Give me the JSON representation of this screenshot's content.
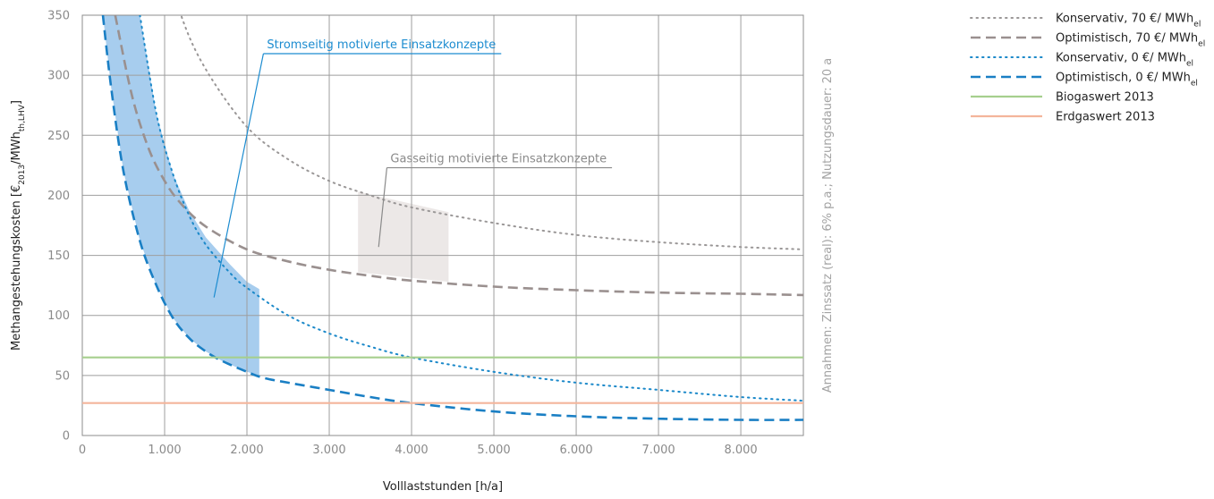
{
  "chart_data": {
    "type": "line",
    "xlabel": "Volllaststunden [h/a]",
    "ylabel_parts": [
      "Methangestehungskosten [€",
      "2013",
      "/MWh",
      "th,LHV",
      "]"
    ],
    "x_ticks": [
      0,
      1000,
      2000,
      3000,
      4000,
      5000,
      6000,
      7000,
      8000
    ],
    "x_tick_labels": [
      "0",
      "1.000",
      "2.000",
      "3.000",
      "4.000",
      "5.000",
      "6.000",
      "7.000",
      "8.000"
    ],
    "y_ticks": [
      0,
      50,
      100,
      150,
      200,
      250,
      300,
      350
    ],
    "y_tick_labels": [
      "0",
      "50",
      "100",
      "150",
      "200",
      "250",
      "300",
      "350"
    ],
    "xlim": [
      0,
      8760
    ],
    "ylim": [
      0,
      350
    ],
    "grid": true,
    "side_note": "Annahmen: Zinssatz (real): 6% p.a.; Nutzungsdauer: 20 a",
    "series": [
      {
        "name": "Konservativ, 70 €/ MWh",
        "name_sub": "el",
        "color": "#9a9797",
        "dash": "dotted",
        "points": [
          [
            1000,
            405
          ],
          [
            1200,
            350
          ],
          [
            1500,
            305
          ],
          [
            2000,
            257
          ],
          [
            2500,
            230
          ],
          [
            3000,
            212
          ],
          [
            3500,
            200
          ],
          [
            4000,
            190
          ],
          [
            5000,
            177
          ],
          [
            6000,
            167
          ],
          [
            7000,
            161
          ],
          [
            8000,
            157
          ],
          [
            8760,
            155
          ]
        ]
      },
      {
        "name": "Optimistisch, 70 €/ MWh",
        "name_sub": "el",
        "color": "#9a908f",
        "dash": "dashed",
        "points": [
          [
            400,
            350
          ],
          [
            600,
            284
          ],
          [
            800,
            240
          ],
          [
            1000,
            212
          ],
          [
            1200,
            193
          ],
          [
            1500,
            174
          ],
          [
            2000,
            155
          ],
          [
            2500,
            145
          ],
          [
            3000,
            138
          ],
          [
            3500,
            133
          ],
          [
            4000,
            129
          ],
          [
            5000,
            124
          ],
          [
            6000,
            121
          ],
          [
            7000,
            119
          ],
          [
            8000,
            118
          ],
          [
            8760,
            117
          ]
        ]
      },
      {
        "name": "Konservativ, 0 €/ MWh",
        "name_sub": "el",
        "color": "#1a88c9",
        "dash": "dotted",
        "points": [
          [
            700,
            350
          ],
          [
            900,
            268
          ],
          [
            1100,
            218
          ],
          [
            1300,
            183
          ],
          [
            1500,
            159
          ],
          [
            1800,
            135
          ],
          [
            2000,
            123
          ],
          [
            2500,
            100
          ],
          [
            3000,
            85
          ],
          [
            3500,
            74
          ],
          [
            4000,
            65
          ],
          [
            5000,
            53
          ],
          [
            6000,
            44
          ],
          [
            7000,
            38
          ],
          [
            8000,
            32
          ],
          [
            8760,
            29
          ]
        ]
      },
      {
        "name": "Optimistisch, 0 €/ MWh",
        "name_sub": "el",
        "color": "#1a7fc4",
        "dash": "dashed",
        "points": [
          [
            250,
            350
          ],
          [
            350,
            290
          ],
          [
            500,
            220
          ],
          [
            700,
            162
          ],
          [
            900,
            125
          ],
          [
            1100,
            98
          ],
          [
            1300,
            81
          ],
          [
            1500,
            70
          ],
          [
            1700,
            62
          ],
          [
            2000,
            53
          ],
          [
            2200,
            48
          ],
          [
            2500,
            44
          ],
          [
            3000,
            38
          ],
          [
            3500,
            32
          ],
          [
            4000,
            27
          ],
          [
            5000,
            20
          ],
          [
            6000,
            16
          ],
          [
            7000,
            14
          ],
          [
            8000,
            13
          ],
          [
            8760,
            13
          ]
        ]
      },
      {
        "name": "Biogaswert 2013",
        "color": "#a6cf8e",
        "dash": "solid",
        "points": [
          [
            0,
            65
          ],
          [
            8760,
            65
          ]
        ]
      },
      {
        "name": "Erdgaswert 2013",
        "color": "#f4b59b",
        "dash": "solid",
        "points": [
          [
            0,
            27
          ],
          [
            8760,
            27
          ]
        ]
      }
    ],
    "regions": [
      {
        "name": "blue-band",
        "color": "#a7cdee",
        "polygon": [
          [
            250,
            350
          ],
          [
            350,
            290
          ],
          [
            500,
            220
          ],
          [
            700,
            162
          ],
          [
            900,
            125
          ],
          [
            1100,
            98
          ],
          [
            1300,
            81
          ],
          [
            1500,
            70
          ],
          [
            1700,
            62
          ],
          [
            2000,
            53
          ],
          [
            2150,
            50
          ],
          [
            2150,
            122
          ],
          [
            2000,
            128
          ],
          [
            1800,
            142
          ],
          [
            1500,
            165
          ],
          [
            1300,
            187
          ],
          [
            1100,
            218
          ],
          [
            900,
            268
          ],
          [
            700,
            350
          ]
        ]
      },
      {
        "name": "grey-band",
        "color": "#ece8e7",
        "polygon": [
          [
            3350,
            203
          ],
          [
            4450,
            186
          ],
          [
            4450,
            128
          ],
          [
            3350,
            136
          ]
        ]
      }
    ],
    "annotations": [
      {
        "text": "Stromseitig motivierte Einsatzkonzepte",
        "color": "#1c8cd0",
        "label_at": [
          2200,
          318
        ],
        "line_to": [
          1600,
          115
        ]
      },
      {
        "text": "Gasseitig motivierte Einsatzkonzepte",
        "color": "#8a8a8a",
        "label_at": [
          3700,
          223
        ],
        "line_to": [
          3600,
          157
        ]
      }
    ]
  }
}
